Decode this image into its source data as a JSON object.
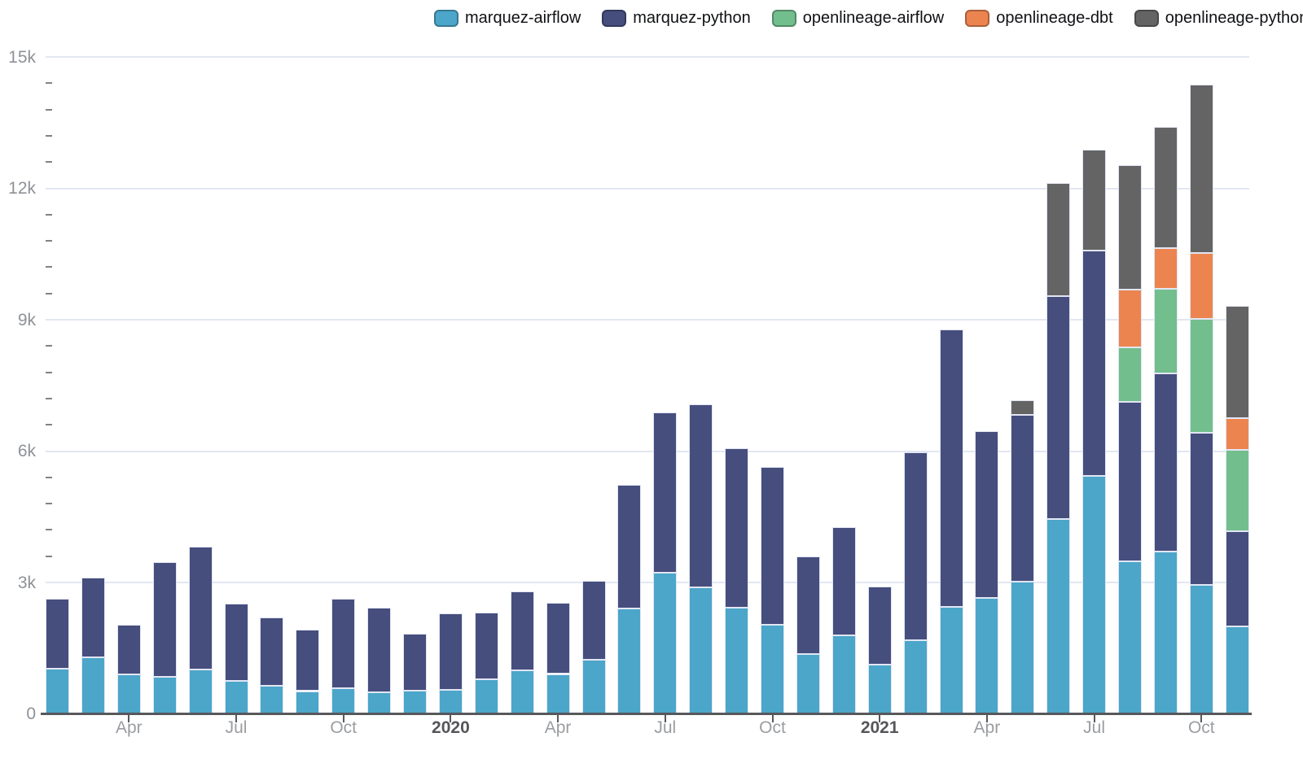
{
  "chart_data": {
    "type": "bar",
    "stacked": true,
    "title": "",
    "categories": [
      "Feb 2019",
      "Mar 2019",
      "Apr 2019",
      "May 2019",
      "Jun 2019",
      "Jul 2019",
      "Aug 2019",
      "Sep 2019",
      "Oct 2019",
      "Nov 2019",
      "Dec 2019",
      "Jan 2020",
      "Feb 2020",
      "Mar 2020",
      "Apr 2020",
      "May 2020",
      "Jun 2020",
      "Jul 2020",
      "Aug 2020",
      "Sep 2020",
      "Oct 2020",
      "Nov 2020",
      "Dec 2020",
      "Jan 2021",
      "Feb 2021",
      "Mar 2021",
      "Apr 2021",
      "May 2021",
      "Jun 2021",
      "Jul 2021",
      "Aug 2021",
      "Sep 2021",
      "Oct 2021",
      "Nov 2021"
    ],
    "series": [
      {
        "name": "marquez-airflow",
        "color": "#4BA6C9",
        "values": [
          1040,
          1300,
          910,
          840,
          1010,
          760,
          650,
          520,
          590,
          500,
          530,
          540,
          790,
          990,
          910,
          1240,
          2410,
          3220,
          2880,
          2430,
          2040,
          1370,
          1800,
          1130,
          1680,
          2450,
          2640,
          3020,
          4440,
          5430,
          3480,
          3700,
          2950,
          2000
        ]
      },
      {
        "name": "marquez-python",
        "color": "#464E7D",
        "values": [
          1580,
          1810,
          1130,
          2630,
          2810,
          1750,
          1550,
          1410,
          2040,
          1930,
          1300,
          1760,
          1520,
          1810,
          1630,
          1790,
          2820,
          3660,
          4190,
          3640,
          3590,
          2230,
          2470,
          1770,
          4300,
          6320,
          3820,
          3800,
          5100,
          5140,
          3640,
          4070,
          3460,
          2170
        ]
      },
      {
        "name": "openlineage-airflow",
        "color": "#72BE8D",
        "values": [
          0,
          0,
          0,
          0,
          0,
          0,
          0,
          0,
          0,
          0,
          0,
          0,
          0,
          0,
          0,
          0,
          0,
          0,
          0,
          0,
          0,
          0,
          0,
          0,
          0,
          0,
          0,
          0,
          0,
          0,
          1250,
          1930,
          2600,
          1860
        ]
      },
      {
        "name": "openlineage-dbt",
        "color": "#EC8450",
        "values": [
          0,
          0,
          0,
          0,
          0,
          0,
          0,
          0,
          0,
          0,
          0,
          0,
          0,
          0,
          0,
          0,
          0,
          0,
          0,
          0,
          0,
          0,
          0,
          0,
          0,
          0,
          0,
          0,
          0,
          0,
          1320,
          940,
          1520,
          720
        ]
      },
      {
        "name": "openlineage-python",
        "color": "#646465",
        "values": [
          0,
          0,
          0,
          0,
          0,
          0,
          0,
          0,
          0,
          0,
          0,
          0,
          0,
          0,
          0,
          0,
          0,
          0,
          0,
          0,
          0,
          0,
          0,
          0,
          0,
          0,
          0,
          350,
          2590,
          2320,
          2840,
          2760,
          3830,
          2560
        ]
      }
    ],
    "yaxis": {
      "lim": [
        0,
        15000
      ],
      "ticks": [
        0,
        3000,
        6000,
        9000,
        12000,
        15000
      ],
      "tick_labels": [
        "0",
        "3k",
        "6k",
        "9k",
        "12k",
        "15k"
      ],
      "minor_tick_step": 600
    },
    "xaxis": {
      "ticks": [
        {
          "index": 2,
          "label": "Apr",
          "bold": false
        },
        {
          "index": 5,
          "label": "Jul",
          "bold": false
        },
        {
          "index": 8,
          "label": "Oct",
          "bold": false
        },
        {
          "index": 11,
          "label": "2020",
          "bold": true
        },
        {
          "index": 14,
          "label": "Apr",
          "bold": false
        },
        {
          "index": 17,
          "label": "Jul",
          "bold": false
        },
        {
          "index": 20,
          "label": "Oct",
          "bold": false
        },
        {
          "index": 23,
          "label": "2021",
          "bold": true
        },
        {
          "index": 26,
          "label": "Apr",
          "bold": false
        },
        {
          "index": 29,
          "label": "Jul",
          "bold": false
        },
        {
          "index": 32,
          "label": "Oct",
          "bold": false
        }
      ]
    },
    "grid": "horizontal",
    "legend_position": "top-right",
    "style": {
      "background": "#FFFFFF",
      "grid_color": "#E2E7F2",
      "axis_color": "#57585C",
      "minor_tick_color": "#7E838B",
      "y_label_color": "#8E9297",
      "month_label_color": "#9A9DA1",
      "year_label_color": "#56565A",
      "legend_text_color": "#101114",
      "bar_border_color": "#E2E6F4"
    }
  }
}
